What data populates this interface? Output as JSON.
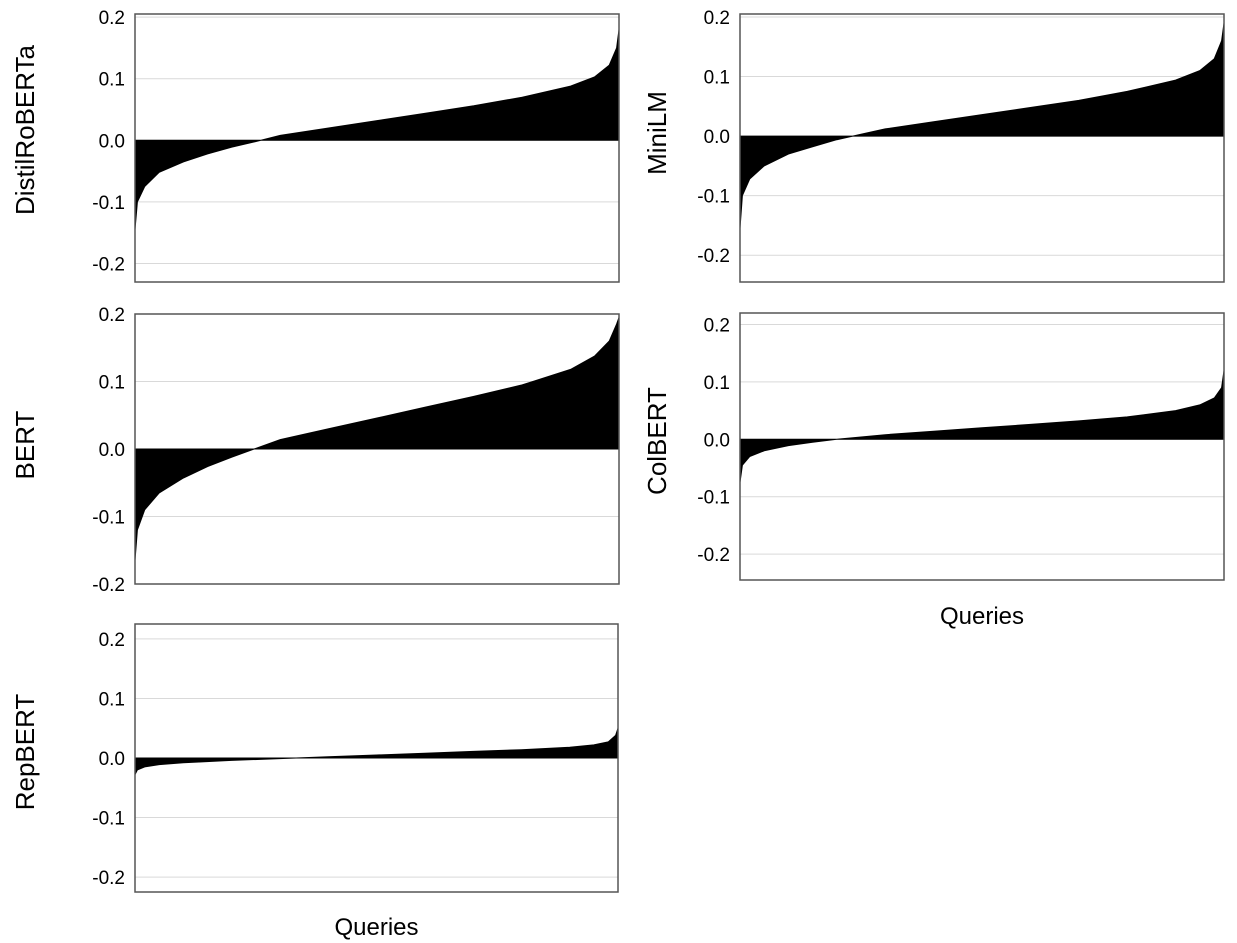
{
  "chart_data": [
    {
      "type": "area",
      "ylabel": "DistilRoBERTa",
      "xlabel": "",
      "ylim": [
        -0.23,
        0.205
      ],
      "yticks": [
        0.2,
        0.1,
        0.0,
        -0.1,
        -0.2
      ],
      "ytick_labels": [
        "0.2",
        "0.1",
        "0.0",
        "-0.1",
        "-0.2"
      ],
      "grid": true,
      "fill_color": "#000000",
      "x": [
        0,
        0.005,
        0.02,
        0.05,
        0.1,
        0.15,
        0.2,
        0.25,
        0.3,
        0.4,
        0.5,
        0.6,
        0.7,
        0.8,
        0.9,
        0.95,
        0.98,
        0.995,
        1.0
      ],
      "y": [
        -0.145,
        -0.1,
        -0.075,
        -0.052,
        -0.035,
        -0.022,
        -0.011,
        -0.002,
        0.008,
        0.02,
        0.032,
        0.044,
        0.056,
        0.07,
        0.088,
        0.103,
        0.122,
        0.15,
        0.18
      ]
    },
    {
      "type": "area",
      "ylabel": "MiniLM",
      "xlabel": "",
      "ylim": [
        -0.245,
        0.205
      ],
      "yticks": [
        0.2,
        0.1,
        0.0,
        -0.1,
        -0.2
      ],
      "ytick_labels": [
        "0.2",
        "0.1",
        "0.0",
        "-0.1",
        "-0.2"
      ],
      "grid": true,
      "fill_color": "#000000",
      "x": [
        0,
        0.005,
        0.02,
        0.05,
        0.1,
        0.15,
        0.2,
        0.25,
        0.3,
        0.4,
        0.5,
        0.6,
        0.7,
        0.8,
        0.9,
        0.95,
        0.98,
        0.995,
        1.0
      ],
      "y": [
        -0.155,
        -0.1,
        -0.072,
        -0.05,
        -0.03,
        -0.018,
        -0.006,
        0.003,
        0.012,
        0.024,
        0.036,
        0.048,
        0.06,
        0.075,
        0.094,
        0.11,
        0.13,
        0.16,
        0.19
      ]
    },
    {
      "type": "area",
      "ylabel": "BERT",
      "xlabel": "",
      "ylim": [
        -0.2,
        0.2
      ],
      "yticks": [
        0.2,
        0.1,
        0.0,
        -0.1,
        -0.2
      ],
      "ytick_labels": [
        "0.2",
        "0.1",
        "0.0",
        "-0.1",
        "-0.2"
      ],
      "grid": true,
      "fill_color": "#000000",
      "x": [
        0,
        0.005,
        0.02,
        0.05,
        0.1,
        0.15,
        0.2,
        0.25,
        0.3,
        0.4,
        0.5,
        0.6,
        0.7,
        0.8,
        0.9,
        0.95,
        0.98,
        0.995,
        1.0
      ],
      "y": [
        -0.165,
        -0.12,
        -0.09,
        -0.065,
        -0.043,
        -0.026,
        -0.012,
        0.001,
        0.014,
        0.03,
        0.046,
        0.062,
        0.078,
        0.095,
        0.118,
        0.138,
        0.16,
        0.185,
        0.195
      ]
    },
    {
      "type": "area",
      "ylabel": "ColBERT",
      "xlabel": "Queries",
      "ylim": [
        -0.245,
        0.22
      ],
      "yticks": [
        0.2,
        0.1,
        0.0,
        -0.1,
        -0.2
      ],
      "ytick_labels": [
        "0.2",
        "0.1",
        "0.0",
        "-0.1",
        "-0.2"
      ],
      "grid": true,
      "fill_color": "#000000",
      "x": [
        0,
        0.005,
        0.02,
        0.05,
        0.1,
        0.15,
        0.2,
        0.25,
        0.3,
        0.4,
        0.5,
        0.6,
        0.7,
        0.8,
        0.9,
        0.95,
        0.98,
        0.995,
        1.0
      ],
      "y": [
        -0.075,
        -0.045,
        -0.03,
        -0.02,
        -0.011,
        -0.005,
        0.0,
        0.004,
        0.008,
        0.014,
        0.02,
        0.026,
        0.032,
        0.039,
        0.05,
        0.06,
        0.072,
        0.09,
        0.12
      ]
    },
    {
      "type": "area",
      "ylabel": "RepBERT",
      "xlabel": "Queries",
      "ylim": [
        -0.225,
        0.225
      ],
      "yticks": [
        0.2,
        0.1,
        0.0,
        -0.1,
        -0.2
      ],
      "ytick_labels": [
        "0.2",
        "0.1",
        "0.0",
        "-0.1",
        "-0.2"
      ],
      "grid": true,
      "fill_color": "#000000",
      "x": [
        0,
        0.005,
        0.02,
        0.05,
        0.1,
        0.2,
        0.3,
        0.4,
        0.5,
        0.6,
        0.7,
        0.8,
        0.9,
        0.95,
        0.98,
        0.995,
        1.0
      ],
      "y": [
        -0.028,
        -0.02,
        -0.015,
        -0.011,
        -0.008,
        -0.004,
        -0.001,
        0.002,
        0.005,
        0.008,
        0.011,
        0.014,
        0.018,
        0.022,
        0.027,
        0.038,
        0.05
      ]
    }
  ]
}
